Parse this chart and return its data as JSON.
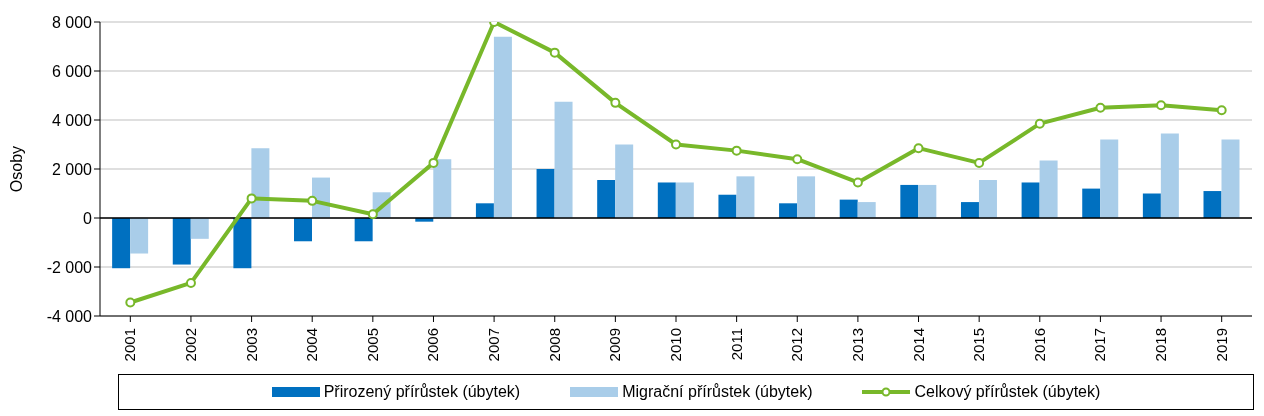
{
  "chart_data": {
    "type": "bar",
    "ylabel": "Osoby",
    "categories": [
      "2001",
      "2002",
      "2003",
      "2004",
      "2005",
      "2006",
      "2007",
      "2008",
      "2009",
      "2010",
      "2011",
      "2012",
      "2013",
      "2014",
      "2015",
      "2016",
      "2017",
      "2018",
      "2019"
    ],
    "series": [
      {
        "name": "Přirozený přírůstek (úbytek)",
        "color": "#0070c0",
        "values": [
          -2050,
          -1900,
          -2050,
          -950,
          -950,
          -150,
          600,
          2000,
          1550,
          1450,
          950,
          600,
          750,
          1350,
          650,
          1450,
          1200,
          1000,
          1100
        ]
      },
      {
        "name": "Migrační přírůstek (úbytek)",
        "color": "#a9cde9",
        "values": [
          -1450,
          -850,
          2850,
          1650,
          1050,
          2400,
          7400,
          4750,
          3000,
          1450,
          1700,
          1700,
          650,
          1350,
          1550,
          2350,
          3200,
          3450,
          3200
        ]
      },
      {
        "name": "Celkový přírůstek (úbytek)",
        "type": "line",
        "color": "#78b82a",
        "values": [
          -3450,
          -2650,
          800,
          700,
          150,
          2250,
          8000,
          6750,
          4700,
          3000,
          2750,
          2400,
          1450,
          2850,
          2250,
          3850,
          4500,
          4600,
          4400
        ]
      }
    ],
    "ylim": [
      -4000,
      8000
    ],
    "yticks": [
      {
        "value": -4000,
        "label": "-4 000"
      },
      {
        "value": -2000,
        "label": "-2 000"
      },
      0,
      {
        "value": 2000,
        "label": "2 000"
      },
      {
        "value": 4000,
        "label": "4 000"
      },
      {
        "value": 6000,
        "label": "6 000"
      },
      {
        "value": 8000,
        "label": "8 000"
      }
    ],
    "grid": "y",
    "legend": "bottom",
    "marker": "circle",
    "line_style": "solid"
  }
}
